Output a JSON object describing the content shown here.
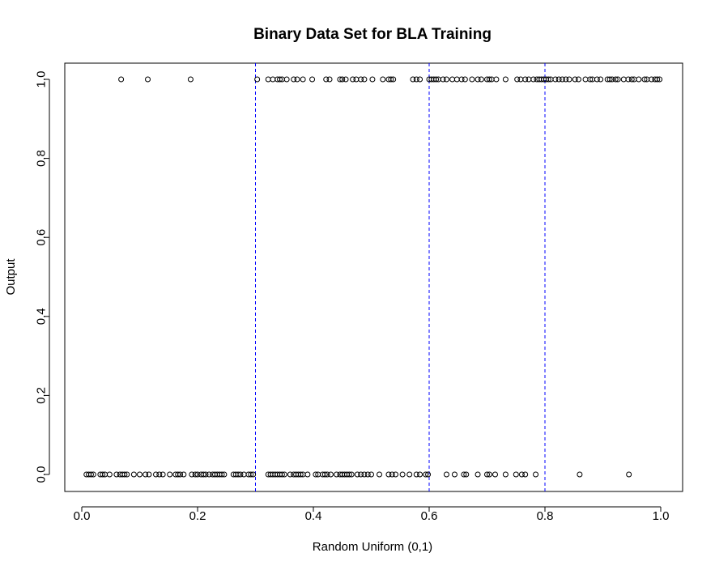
{
  "chart_data": {
    "type": "scatter",
    "title": "Binary Data Set for BLA Training",
    "xlabel": "Random Uniform (0,1)",
    "ylabel": "Output",
    "xlim": [
      0,
      1
    ],
    "ylim": [
      0,
      1
    ],
    "x_ticks": [
      "0.0",
      "0.2",
      "0.4",
      "0.6",
      "0.8",
      "1.0"
    ],
    "y_ticks": [
      "0.0",
      "0.2",
      "0.4",
      "0.6",
      "0.8",
      "1.0"
    ],
    "grid": false,
    "marker": "open-circle",
    "point_color": "#000000",
    "reference_lines": {
      "orientation": "vertical",
      "style": "dashed",
      "color": "#0000ff",
      "x": [
        0.3,
        0.6,
        0.8
      ]
    },
    "series": [
      {
        "y": 0,
        "x": [
          0.008,
          0.012,
          0.016,
          0.02,
          0.032,
          0.036,
          0.04,
          0.048,
          0.06,
          0.066,
          0.07,
          0.074,
          0.078,
          0.09,
          0.1,
          0.11,
          0.116,
          0.128,
          0.134,
          0.14,
          0.152,
          0.162,
          0.166,
          0.17,
          0.176,
          0.19,
          0.196,
          0.2,
          0.206,
          0.21,
          0.214,
          0.22,
          0.226,
          0.23,
          0.234,
          0.238,
          0.242,
          0.246,
          0.262,
          0.266,
          0.27,
          0.274,
          0.28,
          0.288,
          0.292,
          0.296,
          0.322,
          0.326,
          0.33,
          0.334,
          0.338,
          0.342,
          0.346,
          0.35,
          0.36,
          0.366,
          0.37,
          0.374,
          0.378,
          0.382,
          0.39,
          0.404,
          0.408,
          0.416,
          0.42,
          0.424,
          0.43,
          0.44,
          0.446,
          0.45,
          0.454,
          0.458,
          0.462,
          0.466,
          0.476,
          0.482,
          0.488,
          0.494,
          0.5,
          0.514,
          0.53,
          0.536,
          0.542,
          0.554,
          0.566,
          0.578,
          0.584,
          0.594,
          0.598,
          0.63,
          0.644,
          0.66,
          0.664,
          0.684,
          0.7,
          0.704,
          0.714,
          0.732,
          0.75,
          0.76,
          0.766,
          0.784,
          0.86,
          0.945
        ]
      },
      {
        "y": 1,
        "x": [
          0.068,
          0.114,
          0.188,
          0.303,
          0.322,
          0.33,
          0.338,
          0.342,
          0.346,
          0.354,
          0.366,
          0.372,
          0.382,
          0.398,
          0.422,
          0.428,
          0.446,
          0.45,
          0.456,
          0.468,
          0.474,
          0.482,
          0.488,
          0.502,
          0.52,
          0.53,
          0.534,
          0.538,
          0.572,
          0.578,
          0.584,
          0.6,
          0.604,
          0.608,
          0.612,
          0.616,
          0.624,
          0.63,
          0.64,
          0.648,
          0.656,
          0.662,
          0.674,
          0.684,
          0.69,
          0.7,
          0.704,
          0.708,
          0.716,
          0.732,
          0.752,
          0.758,
          0.766,
          0.772,
          0.78,
          0.786,
          0.79,
          0.794,
          0.798,
          0.802,
          0.806,
          0.81,
          0.818,
          0.824,
          0.83,
          0.836,
          0.842,
          0.852,
          0.858,
          0.87,
          0.878,
          0.882,
          0.89,
          0.896,
          0.908,
          0.912,
          0.916,
          0.922,
          0.926,
          0.936,
          0.944,
          0.95,
          0.954,
          0.962,
          0.972,
          0.976,
          0.984,
          0.99,
          0.994,
          0.998
        ]
      }
    ]
  }
}
